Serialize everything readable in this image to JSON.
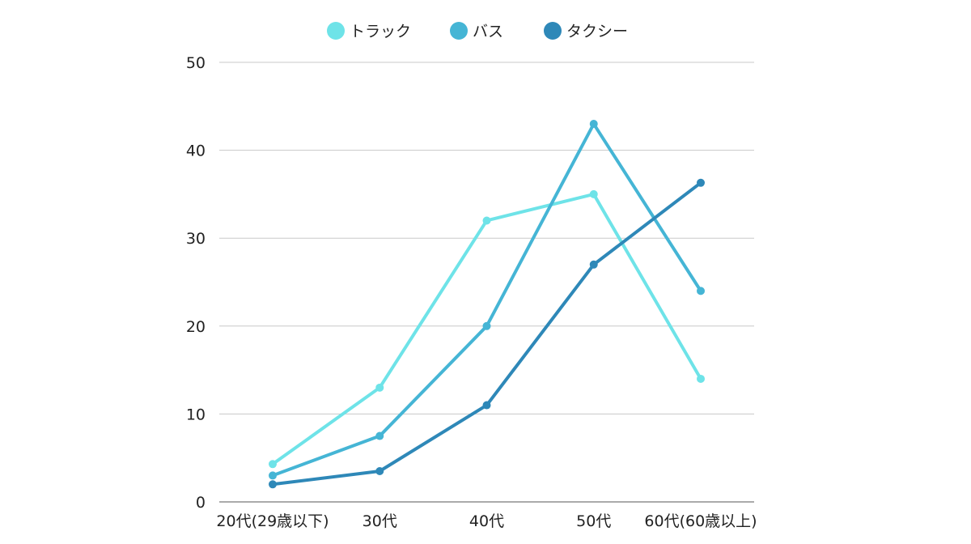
{
  "chart_data": {
    "type": "line",
    "categories": [
      "20代(29歳以下)",
      "30代",
      "40代",
      "50代",
      "60代(60歳以上)"
    ],
    "series": [
      {
        "name": "トラック",
        "color": "#6ee3e8",
        "values": [
          4.3,
          13,
          32,
          35,
          14
        ]
      },
      {
        "name": "バス",
        "color": "#45b5d5",
        "values": [
          3,
          7.5,
          20,
          43,
          24
        ]
      },
      {
        "name": "タクシー",
        "color": "#2e88b8",
        "values": [
          2,
          3.5,
          11,
          27,
          36.3
        ]
      }
    ],
    "yticks": [
      "0",
      "10",
      "20",
      "30",
      "40",
      "50"
    ],
    "ylim": [
      0,
      50
    ],
    "grid": true,
    "legend_position": "top-center"
  }
}
